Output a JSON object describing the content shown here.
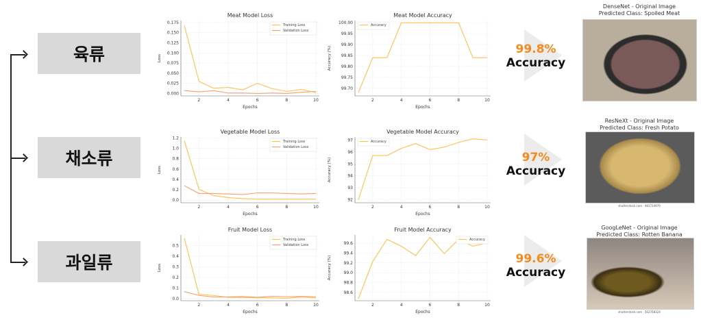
{
  "categories": [
    {
      "label": "육류"
    },
    {
      "label": "채소류"
    },
    {
      "label": "과일류"
    }
  ],
  "results": [
    {
      "percent": "99.8%",
      "label": "Accuracy",
      "model_title": "DenseNet - Original Image",
      "predicted": "Predicted Class: Spoiled Meat"
    },
    {
      "percent": "97%",
      "label": "Accuracy",
      "model_title": "ResNeXt - Original Image",
      "predicted": "Predicted Class: Fresh Potato",
      "credit": "shutterstock.com · 481734970"
    },
    {
      "percent": "99.6%",
      "label": "Accuracy",
      "model_title": "GoogLeNet - Original Image",
      "predicted": "Predicted Class: Rotten Banana",
      "credit": "shutterstock.com · 562768324"
    }
  ],
  "colors": {
    "training": "#ffc04d",
    "validation": "#f4a070",
    "accent": "#f58a1f"
  },
  "chart_data": [
    {
      "type": "line",
      "title": "Meat Model Loss",
      "xlabel": "Epochs",
      "ylabel": "Loss",
      "x": [
        1,
        2,
        3,
        4,
        5,
        6,
        7,
        8,
        9,
        10
      ],
      "xticks": [
        2,
        4,
        6,
        8,
        10
      ],
      "ylim": [
        -0.006,
        0.18
      ],
      "yticks": [
        "0.000",
        "0.025",
        "0.050",
        "0.075",
        "0.100",
        "0.125",
        "0.150",
        "0.175"
      ],
      "legend": "top-right",
      "series": [
        {
          "name": "Training Loss",
          "values": [
            0.168,
            0.03,
            0.013,
            0.015,
            0.009,
            0.025,
            0.012,
            0.005,
            0.01,
            0.002
          ]
        },
        {
          "name": "Validation Loss",
          "values": [
            0.007,
            0.004,
            0.007,
            0.001,
            0.001,
            0.0,
            0.001,
            0.0,
            0.003,
            0.005
          ]
        }
      ]
    },
    {
      "type": "line",
      "title": "Meat Model Accuracy",
      "xlabel": "Epochs",
      "ylabel": "Accuracy (%)",
      "x": [
        1,
        2,
        3,
        4,
        5,
        6,
        7,
        8,
        9,
        10
      ],
      "xticks": [
        2,
        4,
        6,
        8,
        10
      ],
      "ylim": [
        99.665,
        100.01
      ],
      "yticks": [
        "99.70",
        "99.75",
        "99.80",
        "99.85",
        "99.90",
        "99.95",
        "100.00"
      ],
      "legend": "top-left",
      "series": [
        {
          "name": "Accuracy",
          "values": [
            99.68,
            99.84,
            99.84,
            100,
            100,
            100,
            100,
            100,
            99.84,
            99.84
          ]
        }
      ]
    },
    {
      "type": "line",
      "title": "Vegetable Model Loss",
      "xlabel": "Epochs",
      "ylabel": "Loss",
      "x": [
        1,
        2,
        3,
        4,
        5,
        6,
        7,
        8,
        9,
        10
      ],
      "xticks": [
        2,
        4,
        6,
        8,
        10
      ],
      "ylim": [
        -0.05,
        1.22
      ],
      "yticks": [
        "0.0",
        "0.2",
        "0.4",
        "0.6",
        "0.8",
        "1.0",
        "1.2"
      ],
      "legend": "top-right",
      "series": [
        {
          "name": "Training Loss",
          "values": [
            1.15,
            0.21,
            0.09,
            0.05,
            0.03,
            0.02,
            0.02,
            0.02,
            0.02,
            0.02
          ]
        },
        {
          "name": "Validation Loss",
          "values": [
            0.28,
            0.13,
            0.13,
            0.12,
            0.11,
            0.14,
            0.14,
            0.13,
            0.12,
            0.13
          ]
        }
      ]
    },
    {
      "type": "line",
      "title": "Vegetable Model Accuracy",
      "xlabel": "Epochs",
      "ylabel": "Accuracy (%)",
      "x": [
        1,
        2,
        3,
        4,
        5,
        6,
        7,
        8,
        9,
        10
      ],
      "xticks": [
        2,
        4,
        6,
        8,
        10
      ],
      "ylim": [
        91.75,
        97.25
      ],
      "yticks": [
        "92",
        "93",
        "94",
        "95",
        "96",
        "97"
      ],
      "legend": "top-left",
      "series": [
        {
          "name": "Accuracy",
          "values": [
            92.0,
            95.7,
            95.7,
            96.3,
            96.7,
            96.2,
            96.4,
            96.8,
            97.1,
            97.0
          ]
        }
      ]
    },
    {
      "type": "line",
      "title": "Fruit Model Loss",
      "xlabel": "Epochs",
      "ylabel": "Loss",
      "x": [
        1,
        2,
        3,
        4,
        5,
        6,
        7,
        8,
        9,
        10
      ],
      "xticks": [
        2,
        4,
        6,
        8,
        10
      ],
      "ylim": [
        -0.02,
        0.6
      ],
      "yticks": [
        "0.0",
        "0.1",
        "0.2",
        "0.3",
        "0.4",
        "0.5"
      ],
      "legend": "top-right",
      "series": [
        {
          "name": "Training Loss",
          "values": [
            0.57,
            0.04,
            0.03,
            0.012,
            0.01,
            0.008,
            0.007,
            0.003,
            0.015,
            0.008
          ]
        },
        {
          "name": "Validation Loss",
          "values": [
            0.065,
            0.03,
            0.015,
            0.015,
            0.02,
            0.012,
            0.022,
            0.018,
            0.02,
            0.018
          ]
        }
      ]
    },
    {
      "type": "line",
      "title": "Fruit Model Accuracy",
      "xlabel": "Epochs",
      "ylabel": "Accuracy (%)",
      "x": [
        1,
        2,
        3,
        4,
        5,
        6,
        7,
        8,
        9,
        10
      ],
      "xticks": [
        2,
        4,
        6,
        8,
        10
      ],
      "ylim": [
        98.43,
        99.77
      ],
      "yticks": [
        "98.6",
        "98.8",
        "99.0",
        "99.2",
        "99.4",
        "99.6"
      ],
      "legend": "top-right",
      "series": [
        {
          "name": "Accuracy",
          "values": [
            98.47,
            99.23,
            99.68,
            99.54,
            99.35,
            99.72,
            99.39,
            99.68,
            99.54,
            99.61
          ]
        }
      ]
    }
  ]
}
